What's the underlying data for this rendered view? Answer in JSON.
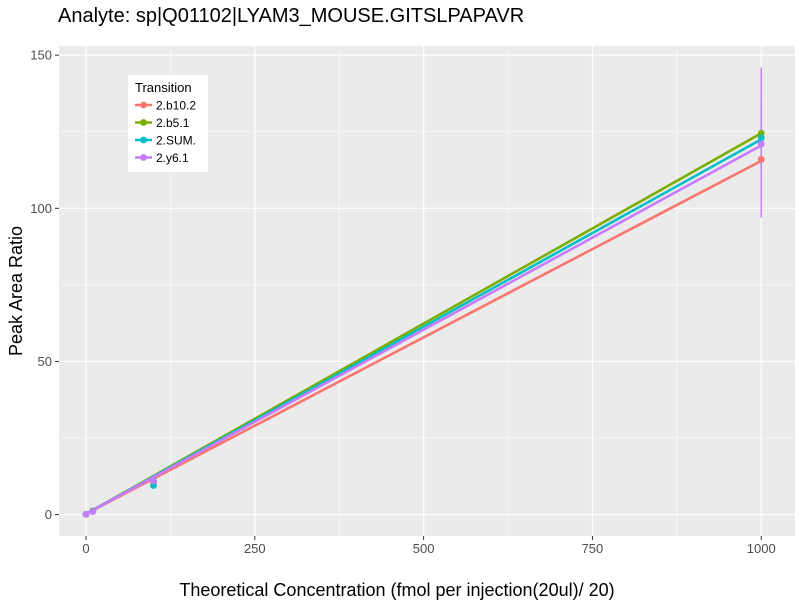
{
  "chart_data": {
    "type": "line",
    "title": "Analyte: sp|Q01102|LYAM3_MOUSE.GITSLPAPAVR",
    "xlabel": "Theoretical Concentration (fmol per injection(20ul)/ 20)",
    "ylabel": "Peak Area Ratio",
    "xlim": [
      -40,
      1050
    ],
    "ylim": [
      -7,
      153
    ],
    "x_ticks": [
      0,
      250,
      500,
      750,
      1000
    ],
    "x_tick_labels": [
      "0",
      "250",
      "500",
      "750",
      "1000"
    ],
    "y_ticks": [
      0,
      50,
      100,
      150
    ],
    "y_tick_labels": [
      "0",
      "50",
      "100",
      "150"
    ],
    "grid": true,
    "background": "#ebebeb",
    "legend": {
      "title": "Transition",
      "placement": "top-left"
    },
    "series": [
      {
        "name": "2.b10.2",
        "color": "#f8766d",
        "points": [
          {
            "x": 0,
            "y": 0.1
          },
          {
            "x": 10,
            "y": 1.0
          },
          {
            "x": 100,
            "y": 10.5
          },
          {
            "x": 1000,
            "y": 116.0,
            "err_low": 113.0,
            "err_high": 119.0
          }
        ],
        "fit": [
          [
            0,
            0.2
          ],
          [
            1000,
            115.5
          ]
        ]
      },
      {
        "name": "2.b5.1",
        "color": "#7cae00",
        "points": [
          {
            "x": 0,
            "y": 0.1
          },
          {
            "x": 10,
            "y": 1.2
          },
          {
            "x": 100,
            "y": 11.0
          },
          {
            "x": 1000,
            "y": 124.5,
            "err_low": 121.0,
            "err_high": 128.0
          }
        ],
        "fit": [
          [
            0,
            0.2
          ],
          [
            1000,
            124.5
          ]
        ]
      },
      {
        "name": "2.SUM.",
        "color": "#00bfc4",
        "points": [
          {
            "x": 0,
            "y": 0.1
          },
          {
            "x": 10,
            "y": 1.1
          },
          {
            "x": 100,
            "y": 9.5
          },
          {
            "x": 1000,
            "y": 123.0,
            "err_low": 112.0,
            "err_high": 135.0
          }
        ],
        "fit": [
          [
            0,
            0.2
          ],
          [
            1000,
            122.5
          ]
        ]
      },
      {
        "name": "2.y6.1",
        "color": "#c77cff",
        "points": [
          {
            "x": 0,
            "y": 0.1
          },
          {
            "x": 10,
            "y": 1.0
          },
          {
            "x": 100,
            "y": 11.0
          },
          {
            "x": 1000,
            "y": 121.0,
            "err_low": 97.0,
            "err_high": 146.0
          }
        ],
        "fit": [
          [
            0,
            0.2
          ],
          [
            1000,
            120.5
          ]
        ]
      }
    ]
  }
}
